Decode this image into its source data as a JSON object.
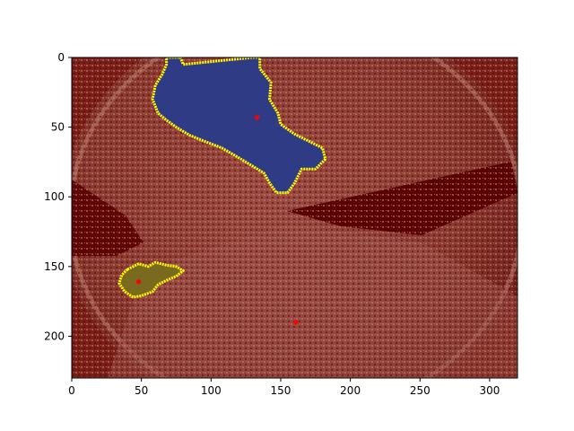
{
  "chart_data": {
    "type": "heatmap",
    "title": "",
    "xlabel": "",
    "ylabel": "",
    "image_size": {
      "width": 320,
      "height": 230
    },
    "xlim": [
      0,
      320
    ],
    "ylim": [
      230,
      0
    ],
    "y_axis_inverted": true,
    "xticks": [
      0,
      50,
      100,
      150,
      200,
      250,
      300
    ],
    "yticks": [
      0,
      50,
      100,
      150,
      200
    ],
    "grid": false,
    "legend": "none",
    "background_colormap": [
      "#5a0000",
      "#7a1e18",
      "#9a4a40",
      "#c08878"
    ],
    "regions": [
      {
        "fill_color": "#2f3b85",
        "outline_color": "#ffff00",
        "outline_points": [
          [
            68,
            0
          ],
          [
            78,
            0
          ],
          [
            80,
            5
          ],
          [
            130,
            0
          ],
          [
            135,
            0
          ],
          [
            135,
            8
          ],
          [
            143,
            18
          ],
          [
            142,
            30
          ],
          [
            148,
            40
          ],
          [
            150,
            48
          ],
          [
            160,
            55
          ],
          [
            170,
            60
          ],
          [
            180,
            65
          ],
          [
            182,
            73
          ],
          [
            175,
            80
          ],
          [
            165,
            80
          ],
          [
            160,
            90
          ],
          [
            155,
            97
          ],
          [
            147,
            97
          ],
          [
            142,
            90
          ],
          [
            138,
            83
          ],
          [
            130,
            78
          ],
          [
            120,
            72
          ],
          [
            108,
            65
          ],
          [
            95,
            60
          ],
          [
            85,
            56
          ],
          [
            75,
            50
          ],
          [
            68,
            45
          ],
          [
            62,
            40
          ],
          [
            58,
            30
          ],
          [
            60,
            20
          ],
          [
            65,
            12
          ],
          [
            68,
            5
          ]
        ]
      },
      {
        "fill_color": "#7a6a20",
        "outline_color": "#ffff00",
        "outline_points": [
          [
            40,
            152
          ],
          [
            48,
            148
          ],
          [
            55,
            150
          ],
          [
            60,
            147
          ],
          [
            68,
            149
          ],
          [
            75,
            150
          ],
          [
            80,
            153
          ],
          [
            75,
            157
          ],
          [
            68,
            160
          ],
          [
            62,
            163
          ],
          [
            58,
            168
          ],
          [
            50,
            171
          ],
          [
            44,
            172
          ],
          [
            38,
            168
          ],
          [
            34,
            162
          ],
          [
            36,
            156
          ]
        ]
      }
    ],
    "points": [
      {
        "x": 133,
        "y": 43,
        "color": "#ff0000"
      },
      {
        "x": 48,
        "y": 161,
        "color": "#ff0000"
      },
      {
        "x": 161,
        "y": 190,
        "color": "#ff0000"
      }
    ]
  }
}
